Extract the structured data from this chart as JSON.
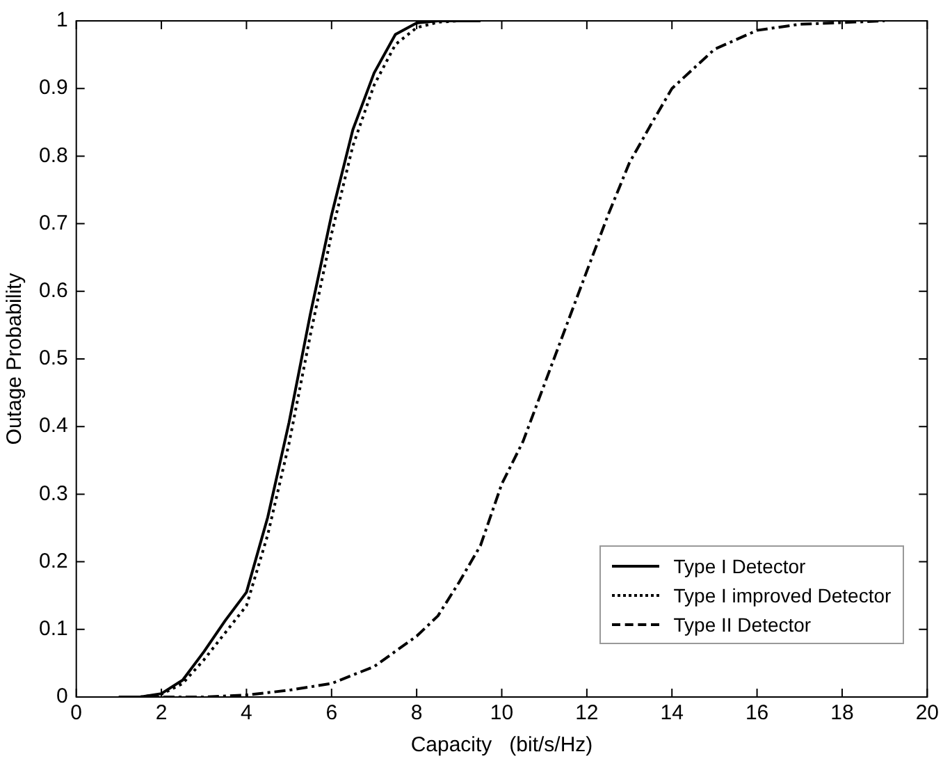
{
  "chart_data": {
    "type": "line",
    "xlabel": "Capacity   (bit/s/Hz)",
    "ylabel": "Outage Probability",
    "xlim": [
      0,
      20
    ],
    "xticks": [
      0,
      2,
      4,
      6,
      8,
      10,
      12,
      14,
      16,
      18,
      20
    ],
    "ylim": [
      0,
      1
    ],
    "yticks": [
      0,
      0.1,
      0.2,
      0.3,
      0.4,
      0.5,
      0.6,
      0.7,
      0.8,
      0.9,
      1
    ],
    "legend": "bottom right",
    "series": [
      {
        "name": "Type I Detector",
        "color": "#000000",
        "line_style": "solid",
        "x": [
          1,
          1.5,
          2,
          2.5,
          3,
          3.5,
          4,
          4.5,
          5,
          5.5,
          6,
          6.5,
          7,
          7.5,
          8,
          8.5,
          9.5
        ],
        "values": [
          0,
          0,
          0.005,
          0.025,
          0.067,
          0.113,
          0.155,
          0.266,
          0.406,
          0.566,
          0.713,
          0.839,
          0.923,
          0.98,
          0.997,
          1,
          1
        ]
      },
      {
        "name": "Type I improved Detector",
        "color": "#000000",
        "line_style": "dotted",
        "x": [
          1,
          1.5,
          2,
          2.5,
          3,
          3.5,
          4,
          4.5,
          5,
          5.5,
          6,
          6.5,
          7,
          7.5,
          8,
          8.5,
          9
        ],
        "values": [
          0,
          0,
          0.004,
          0.02,
          0.055,
          0.095,
          0.135,
          0.24,
          0.375,
          0.535,
          0.685,
          0.815,
          0.905,
          0.965,
          0.99,
          0.998,
          1
        ]
      },
      {
        "name": "Type II Detector",
        "color": "#000000",
        "line_style": "dashdot",
        "x": [
          1,
          3,
          4,
          5,
          6,
          7,
          8,
          8.5,
          9,
          9.5,
          10,
          10.5,
          11,
          11.5,
          12,
          12.5,
          13,
          13.5,
          14,
          15,
          16,
          17,
          19
        ],
        "values": [
          0,
          0,
          0.003,
          0.01,
          0.02,
          0.045,
          0.09,
          0.12,
          0.17,
          0.224,
          0.315,
          0.378,
          0.462,
          0.546,
          0.63,
          0.713,
          0.79,
          0.846,
          0.9,
          0.958,
          0.986,
          0.995,
          1
        ]
      }
    ]
  }
}
